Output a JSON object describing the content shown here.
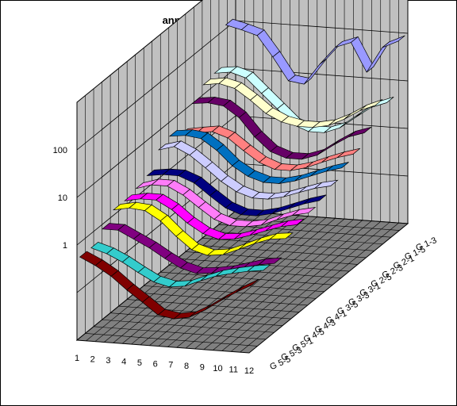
{
  "chart_data": {
    "type": "3d-line-ribbon",
    "title": "annual cycle - geopotential",
    "x": [
      1,
      2,
      3,
      4,
      5,
      6,
      7,
      8,
      9,
      10,
      11,
      12
    ],
    "z_ticks": [
      "1",
      "10",
      "100"
    ],
    "z_scale": "log",
    "y_categories": [
      "G 5-5",
      "G 5-3",
      "G 5-1",
      "G 4-5",
      "G 4-3",
      "G 4-1",
      "G 3-5",
      "G 3-3",
      "G 3-1",
      "G 2-5",
      "G 2-3",
      "G 2-1",
      "G 1-5",
      "G 1-3"
    ],
    "series": [
      {
        "category": "G 5-5",
        "color": "#800000",
        "values": [
          0.5,
          0.35,
          0.22,
          0.12,
          0.07,
          0.04,
          0.035,
          0.04,
          0.06,
          0.1,
          0.16,
          0.24
        ]
      },
      {
        "category": "G 5-3",
        "color": "#33cccc",
        "values": [
          0.5,
          0.4,
          0.28,
          0.18,
          0.12,
          0.1,
          0.11,
          0.15,
          0.2,
          0.24,
          0.28,
          0.31
        ]
      },
      {
        "category": "G 5-1",
        "color": "#800080",
        "values": [
          0.8,
          0.8,
          0.55,
          0.38,
          0.24,
          0.16,
          0.13,
          0.14,
          0.16,
          0.2,
          0.25,
          0.28
        ]
      },
      {
        "category": "G 4-5",
        "color": "#ffff00",
        "values": [
          1.3,
          1.5,
          1.4,
          0.9,
          0.45,
          0.25,
          0.2,
          0.22,
          0.3,
          0.42,
          0.55,
          0.6
        ]
      },
      {
        "category": "G 4-3",
        "color": "#ff00ff",
        "values": [
          1.3,
          1.5,
          1.5,
          1.0,
          0.55,
          0.35,
          0.28,
          0.3,
          0.38,
          0.5,
          0.65,
          0.75
        ]
      },
      {
        "category": "G 4-1",
        "color": "#ff7cf9",
        "values": [
          1.5,
          1.9,
          1.9,
          1.3,
          0.75,
          0.45,
          0.35,
          0.35,
          0.4,
          0.55,
          0.72,
          0.85
        ]
      },
      {
        "category": "G 3-5",
        "color": "#000080",
        "values": [
          1.8,
          2.0,
          2.0,
          1.5,
          0.85,
          0.5,
          0.38,
          0.38,
          0.45,
          0.6,
          0.8,
          1.0
        ]
      },
      {
        "category": "G 3-3",
        "color": "#ccccff",
        "values": [
          4.0,
          5.0,
          3.5,
          2.0,
          1.1,
          0.7,
          0.55,
          0.55,
          0.65,
          0.85,
          1.1,
          1.3
        ]
      },
      {
        "category": "G 3-1",
        "color": "#0070c0",
        "values": [
          5.0,
          5.5,
          5.0,
          3.0,
          1.5,
          0.95,
          0.75,
          0.75,
          0.9,
          1.2,
          1.6,
          2.0
        ]
      },
      {
        "category": "G 2-5",
        "color": "#ff8080",
        "values": [
          3.5,
          4.0,
          4.5,
          3.5,
          2.0,
          1.2,
          0.9,
          0.9,
          1.1,
          1.5,
          2.0,
          2.5
        ]
      },
      {
        "category": "G 2-3",
        "color": "#660066",
        "values": [
          10,
          11,
          10,
          6,
          2.5,
          1.3,
          1.0,
          1.0,
          1.3,
          2.2,
          3.5,
          4.5
        ]
      },
      {
        "category": "G 2-1",
        "color": "#ffffcc",
        "values": [
          16,
          18,
          15,
          9,
          5.0,
          3.5,
          3.0,
          3.0,
          3.5,
          5.0,
          8.0,
          11.0
        ]
      },
      {
        "category": "G 1-5",
        "color": "#ccffff",
        "values": [
          18,
          20,
          16,
          8,
          4.0,
          2.0,
          1.5,
          1.5,
          2.0,
          3.5,
          6.0,
          8.0
        ]
      },
      {
        "category": "G 1-3",
        "color": "#9999ff",
        "values": [
          120,
          100,
          80,
          30,
          10,
          9,
          25,
          60,
          80,
          20,
          70,
          100
        ]
      }
    ],
    "gridlines": true,
    "legend": "none"
  }
}
